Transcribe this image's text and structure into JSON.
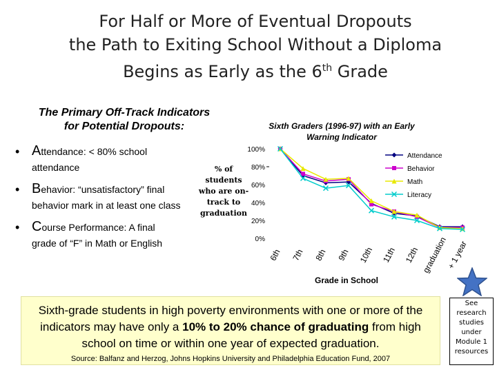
{
  "title": {
    "line1": "For Half or More of Eventual Dropouts",
    "line2": "the Path to Exiting School Without a Diploma",
    "line3_pre": "Begins as Early as the 6",
    "line3_sup": "th",
    "line3_post": " Grade"
  },
  "indicators": {
    "heading_line1": "The Primary Off-Track Indicators",
    "heading_line2": "for Potential Dropouts:",
    "items": [
      {
        "lead": "A",
        "lead_rest": "ttendance:",
        "text": " < 80% school",
        "cont": "attendance"
      },
      {
        "lead": "B",
        "lead_rest": "ehavior:",
        "text": " “unsatisfactory” final",
        "cont": "behavior mark in at least one class"
      },
      {
        "lead": "C",
        "lead_rest": "ourse Performance:",
        "text": "  A final",
        "cont": "grade of “F” in Math or English"
      }
    ]
  },
  "chart_data": {
    "type": "line",
    "title": "Sixth Graders (1996-97) with an Early Warning Indicator",
    "xlabel": "Grade in School",
    "ylabel": "% of students who are on-track to graduation",
    "categories": [
      "6th",
      "7th",
      "8th",
      "9th",
      "10th",
      "11th",
      "12th",
      "graduation",
      "+ 1 year"
    ],
    "ylim": [
      0,
      100
    ],
    "yticks": [
      "100%",
      "80%",
      "60%",
      "40%",
      "20%",
      "0%"
    ],
    "legend_position": "top-right",
    "series": [
      {
        "name": "Attendance",
        "color": "#000080",
        "marker": "diamond",
        "values": [
          100,
          70,
          62,
          63,
          39,
          28,
          25,
          13,
          13
        ]
      },
      {
        "name": "Behavior",
        "color": "#cc00cc",
        "marker": "square",
        "values": [
          100,
          72,
          64,
          66,
          38,
          30,
          24,
          12,
          12
        ]
      },
      {
        "name": "Math",
        "color": "#e8e800",
        "marker": "triangle",
        "values": [
          100,
          78,
          66,
          67,
          42,
          30,
          26,
          12,
          11
        ]
      },
      {
        "name": "Literacy",
        "color": "#00cccc",
        "marker": "x",
        "values": [
          100,
          67,
          56,
          59,
          31,
          24,
          20,
          11,
          10
        ]
      }
    ]
  },
  "callout": {
    "part1": "Sixth-grade students in high poverty environments with one or more of the indicators may have only a ",
    "highlight": "10% to 20% chance of graduating",
    "part2": " from high school on time or within one year of expected graduation.",
    "source": "Source: Balfanz and Herzog, Johns Hopkins University and Philadelphia Education Fund, 2007"
  },
  "resource_box": {
    "lines": [
      "See",
      "research",
      "studies",
      "under",
      "Module 1",
      "resources"
    ],
    "star_color": "#4472c4"
  }
}
